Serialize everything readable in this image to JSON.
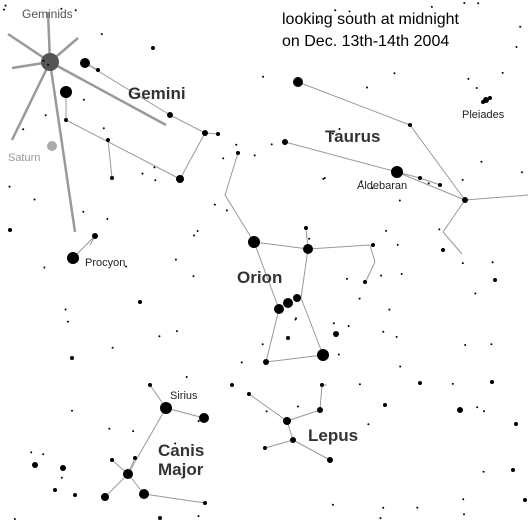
{
  "title": {
    "line1": "looking south at midnight",
    "line2": "on Dec. 13th-14th 2004"
  },
  "labels": {
    "geminids": "Geminids",
    "saturn": "Saturn",
    "gemini": "Gemini",
    "procyon": "Procyon",
    "taurus": "Taurus",
    "pleiades": "Pleiades",
    "aldebaran": "Aldebaran",
    "orion": "Orion",
    "sirius": "Sirius",
    "canis_major_1": "Canis",
    "canis_major_2": "Major",
    "lepus": "Lepus"
  }
}
